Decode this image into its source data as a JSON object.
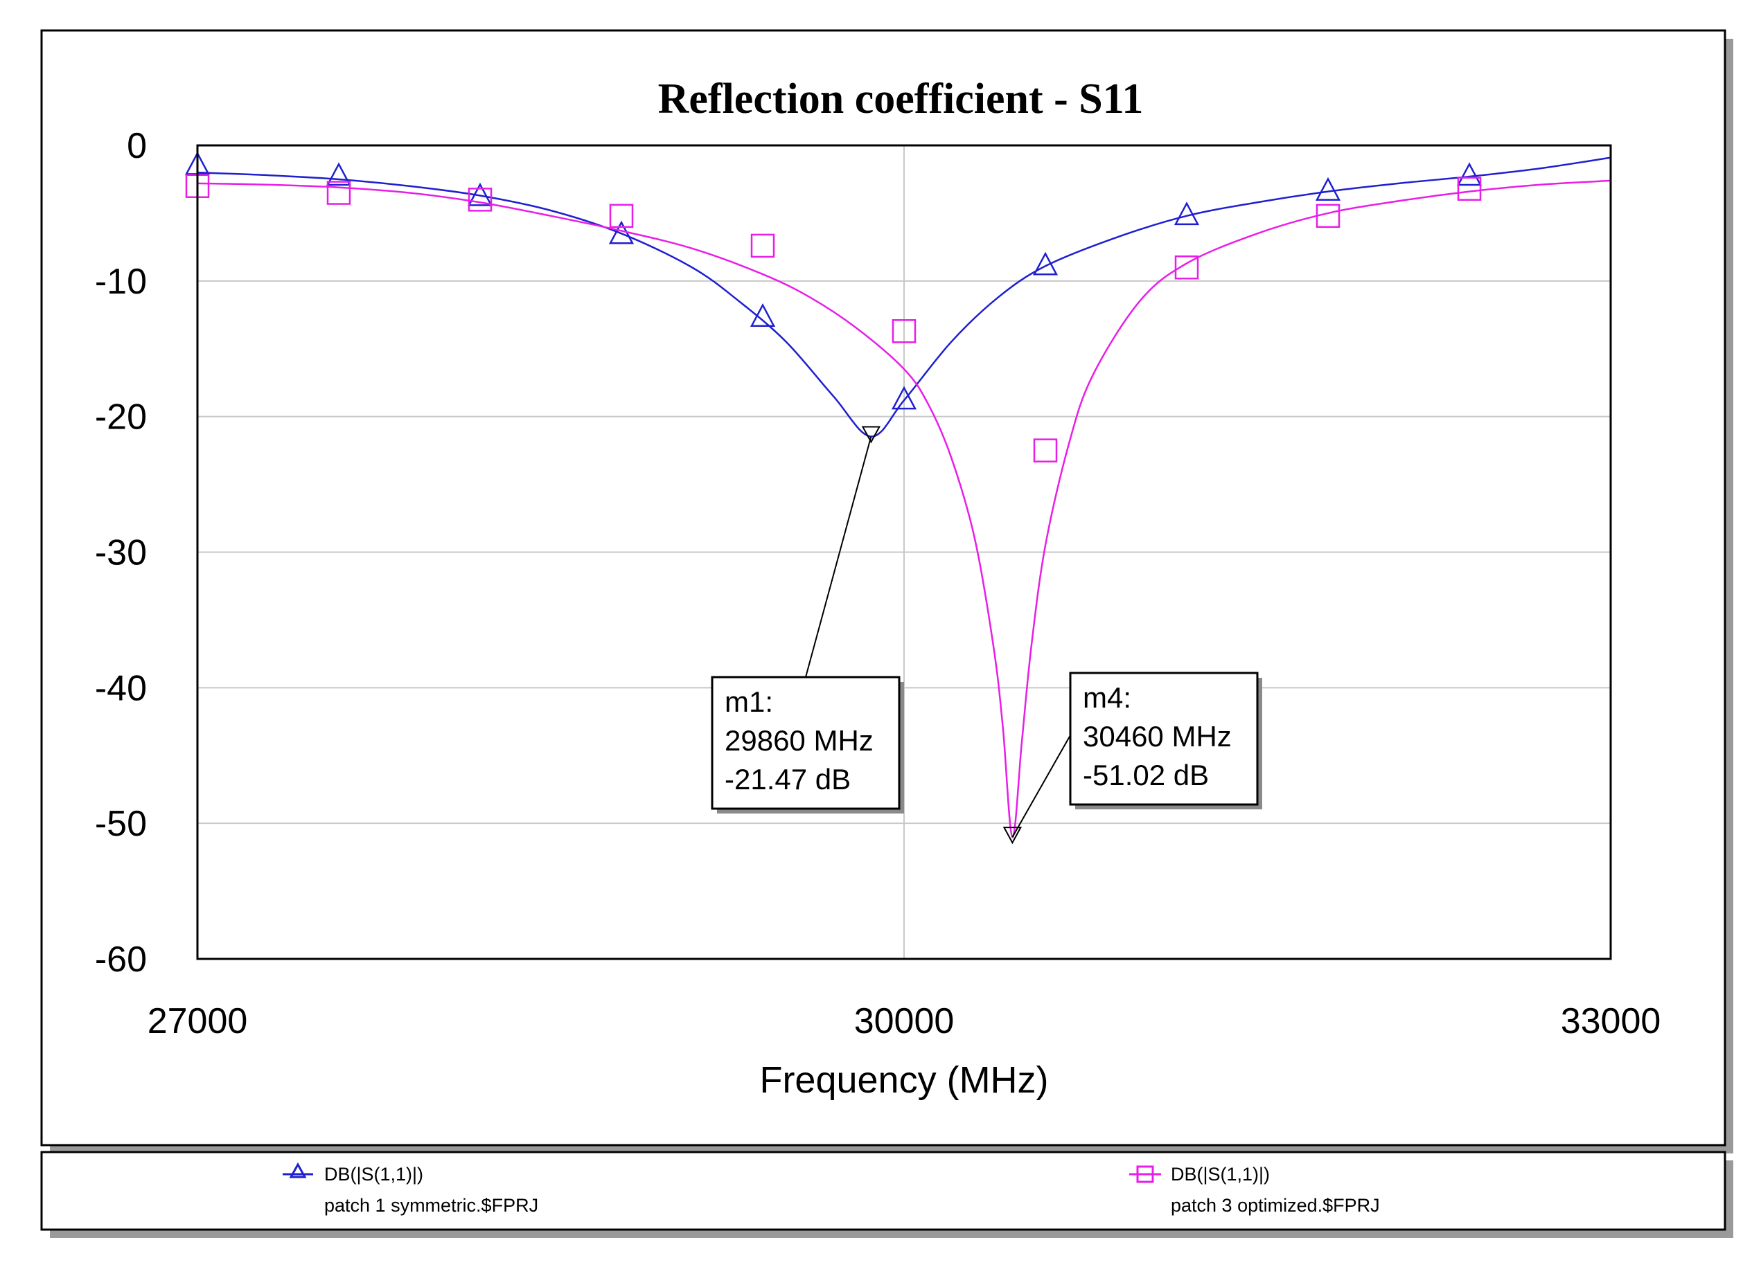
{
  "chart_data": {
    "type": "line",
    "title": "Reflection coefficient - S11",
    "xlabel": "Frequency (MHz)",
    "ylabel": "",
    "xlim": [
      27000,
      33000
    ],
    "ylim": [
      -60,
      0
    ],
    "xticks": [
      27000,
      30000,
      33000
    ],
    "yticks": [
      0,
      -10,
      -20,
      -30,
      -40,
      -50,
      -60
    ],
    "xtick_labels": [
      "27000",
      "30000",
      "33000"
    ],
    "ytick_labels": [
      "0",
      "-10",
      "-20",
      "-30",
      "-40",
      "-50",
      "-60"
    ],
    "grid": true,
    "colors": {
      "series1": "#1f1fd0",
      "series2": "#e81ee8"
    },
    "series": [
      {
        "name": "DB(|S(1,1)|)",
        "source": "patch 1 symmetric.$FPRJ",
        "marker": "triangle",
        "x": [
          27000,
          27300,
          27600,
          27900,
          28200,
          28500,
          28800,
          29100,
          29300,
          29500,
          29700,
          29860,
          30000,
          30200,
          30400,
          30600,
          30900,
          31200,
          31500,
          31800,
          32100,
          32400,
          32700,
          33000
        ],
        "y": [
          -2.0,
          -2.2,
          -2.5,
          -3.0,
          -3.7,
          -4.8,
          -6.5,
          -9.0,
          -11.5,
          -14.5,
          -18.5,
          -21.47,
          -18.8,
          -14.5,
          -11.2,
          -8.9,
          -6.8,
          -5.2,
          -4.2,
          -3.4,
          -2.8,
          -2.3,
          -1.7,
          -0.9
        ],
        "marker_x": [
          27000,
          27600,
          28200,
          28800,
          29400,
          30000,
          30600,
          31200,
          31800,
          32400
        ],
        "marker_y": [
          -1.5,
          -2.3,
          -3.8,
          -6.6,
          -12.7,
          -18.8,
          -8.9,
          -5.2,
          -3.4,
          -2.3
        ]
      },
      {
        "name": "DB(|S(1,1)|)",
        "source": "patch 3 optimized.$FPRJ",
        "marker": "square",
        "x": [
          27000,
          27300,
          27600,
          27900,
          28200,
          28500,
          28800,
          29100,
          29400,
          29600,
          29800,
          30000,
          30100,
          30200,
          30300,
          30380,
          30420,
          30460,
          30500,
          30540,
          30600,
          30700,
          30800,
          31000,
          31200,
          31500,
          31800,
          32100,
          32400,
          32700,
          33000
        ],
        "y": [
          -2.8,
          -2.9,
          -3.1,
          -3.5,
          -4.2,
          -5.2,
          -6.3,
          -7.6,
          -9.5,
          -11.2,
          -13.5,
          -16.5,
          -19.0,
          -23.0,
          -29.0,
          -37.0,
          -43.0,
          -51.02,
          -44.0,
          -37.0,
          -29.5,
          -22.0,
          -17.0,
          -11.5,
          -8.7,
          -6.5,
          -5.0,
          -4.1,
          -3.4,
          -2.9,
          -2.6
        ],
        "marker_x": [
          27000,
          27600,
          28200,
          28800,
          29400,
          30000,
          30600,
          31200,
          31800,
          32400
        ],
        "marker_y": [
          -3.0,
          -3.5,
          -4.0,
          -5.2,
          -7.4,
          -13.7,
          -22.5,
          -9.0,
          -5.2,
          -3.2
        ]
      }
    ],
    "annotations": [
      {
        "id": "m1",
        "label": "m1:",
        "freq_text": "29860 MHz",
        "value_text": "-21.47 dB",
        "x": 29860,
        "y": -21.47
      },
      {
        "id": "m4",
        "label": "m4:",
        "freq_text": "30460 MHz",
        "value_text": "-51.02 dB",
        "x": 30460,
        "y": -51.02
      }
    ]
  }
}
